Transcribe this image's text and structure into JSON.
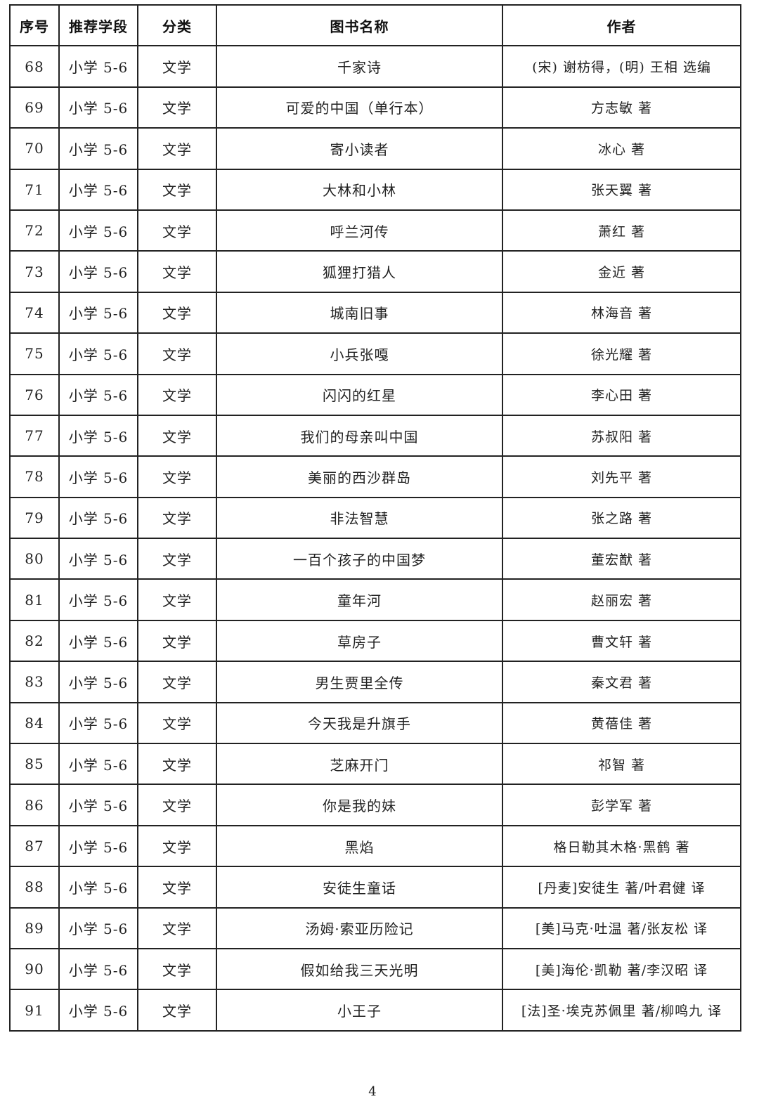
{
  "table": {
    "headers": [
      "序号",
      "推荐学段",
      "分类",
      "图书名称",
      "作者"
    ],
    "rows": [
      [
        "68",
        "小学 5-6",
        "文学",
        "千家诗",
        "(宋) 谢枋得，(明) 王相  选编"
      ],
      [
        "69",
        "小学 5-6",
        "文学",
        "可爱的中国（单行本）",
        "方志敏  著"
      ],
      [
        "70",
        "小学 5-6",
        "文学",
        "寄小读者",
        "冰心  著"
      ],
      [
        "71",
        "小学 5-6",
        "文学",
        "大林和小林",
        "张天翼  著"
      ],
      [
        "72",
        "小学 5-6",
        "文学",
        "呼兰河传",
        "萧红  著"
      ],
      [
        "73",
        "小学 5-6",
        "文学",
        "狐狸打猎人",
        "金近  著"
      ],
      [
        "74",
        "小学 5-6",
        "文学",
        "城南旧事",
        "林海音  著"
      ],
      [
        "75",
        "小学 5-6",
        "文学",
        "小兵张嘎",
        "徐光耀  著"
      ],
      [
        "76",
        "小学 5-6",
        "文学",
        "闪闪的红星",
        "李心田  著"
      ],
      [
        "77",
        "小学 5-6",
        "文学",
        "我们的母亲叫中国",
        "苏叔阳  著"
      ],
      [
        "78",
        "小学 5-6",
        "文学",
        "美丽的西沙群岛",
        "刘先平  著"
      ],
      [
        "79",
        "小学 5-6",
        "文学",
        "非法智慧",
        "张之路  著"
      ],
      [
        "80",
        "小学 5-6",
        "文学",
        "一百个孩子的中国梦",
        "董宏猷  著"
      ],
      [
        "81",
        "小学 5-6",
        "文学",
        "童年河",
        "赵丽宏  著"
      ],
      [
        "82",
        "小学 5-6",
        "文学",
        "草房子",
        "曹文轩  著"
      ],
      [
        "83",
        "小学 5-6",
        "文学",
        "男生贾里全传",
        "秦文君  著"
      ],
      [
        "84",
        "小学 5-6",
        "文学",
        "今天我是升旗手",
        "黄蓓佳  著"
      ],
      [
        "85",
        "小学 5-6",
        "文学",
        "芝麻开门",
        "祁智  著"
      ],
      [
        "86",
        "小学 5-6",
        "文学",
        "你是我的妹",
        "彭学军  著"
      ],
      [
        "87",
        "小学 5-6",
        "文学",
        "黑焰",
        "格日勒其木格·黑鹤  著"
      ],
      [
        "88",
        "小学 5-6",
        "文学",
        "安徒生童话",
        "[丹麦]安徒生  著/叶君健  译"
      ],
      [
        "89",
        "小学 5-6",
        "文学",
        "汤姆·索亚历险记",
        "[美]马克·吐温  著/张友松  译"
      ],
      [
        "90",
        "小学 5-6",
        "文学",
        "假如给我三天光明",
        "[美]海伦·凯勒  著/李汉昭  译"
      ],
      [
        "91",
        "小学 5-6",
        "文学",
        "小王子",
        "[法]圣·埃克苏佩里  著/柳鸣九  译"
      ]
    ]
  },
  "page_number": "4"
}
